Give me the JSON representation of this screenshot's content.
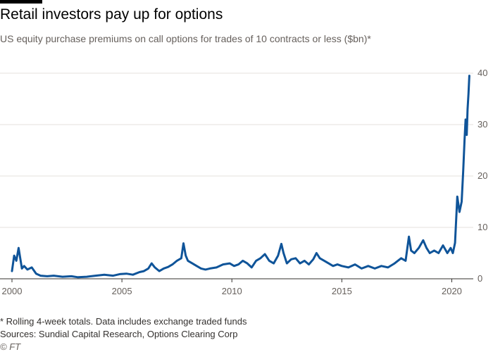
{
  "header": {
    "title": "Retail investors pay up for options",
    "subtitle": "US equity purchase premiums on call options for trades of 10 contracts or less ($bn)*"
  },
  "footer": {
    "footnote": "* Rolling 4-week totals. Data includes exchange traded funds",
    "source": "Sources: Sundial Capital Research, Options Clearing Corp",
    "credit": "© FT"
  },
  "colors": {
    "line": "#0f5499",
    "grid": "#e6e1dc",
    "axis": "#33302e",
    "text": "#66605c"
  },
  "chart_data": {
    "type": "line",
    "title": "Retail investors pay up for options",
    "xlabel": "",
    "ylabel": "",
    "xlim": [
      2000,
      2020.85
    ],
    "ylim": [
      0,
      40
    ],
    "x_ticks": [
      2000,
      2005,
      2010,
      2015,
      2020
    ],
    "y_ticks": [
      0,
      10,
      20,
      30,
      40
    ],
    "grid": "horizontal",
    "y_axis_side": "right",
    "series": [
      {
        "x": [
          2000.0,
          2000.1,
          2000.2,
          2000.3,
          2000.45,
          2000.55,
          2000.7,
          2000.9,
          2001.1,
          2001.3,
          2001.6,
          2001.9,
          2002.3,
          2002.7,
          2003.0,
          2003.4,
          2003.8,
          2004.2,
          2004.6,
          2004.9,
          2005.2,
          2005.5,
          2005.8,
          2006.0,
          2006.2,
          2006.35,
          2006.5,
          2006.7,
          2006.9,
          2007.1,
          2007.3,
          2007.5,
          2007.7,
          2007.8,
          2007.9,
          2008.0,
          2008.2,
          2008.4,
          2008.6,
          2008.8,
          2009.0,
          2009.3,
          2009.6,
          2009.9,
          2010.1,
          2010.3,
          2010.5,
          2010.7,
          2010.9,
          2011.1,
          2011.3,
          2011.5,
          2011.7,
          2011.9,
          2012.1,
          2012.25,
          2012.35,
          2012.5,
          2012.7,
          2012.9,
          2013.1,
          2013.3,
          2013.5,
          2013.7,
          2013.85,
          2014.0,
          2014.2,
          2014.4,
          2014.6,
          2014.8,
          2015.0,
          2015.3,
          2015.6,
          2015.9,
          2016.2,
          2016.5,
          2016.8,
          2017.1,
          2017.4,
          2017.7,
          2017.9,
          2018.05,
          2018.15,
          2018.3,
          2018.5,
          2018.7,
          2018.85,
          2019.0,
          2019.2,
          2019.4,
          2019.6,
          2019.8,
          2019.95,
          2020.05,
          2020.15,
          2020.25,
          2020.35,
          2020.45,
          2020.52,
          2020.58,
          2020.63,
          2020.68,
          2020.72,
          2020.76,
          2020.8
        ],
        "y": [
          1.5,
          4.5,
          3.5,
          6.0,
          2.0,
          2.5,
          1.8,
          2.2,
          1.0,
          0.6,
          0.5,
          0.6,
          0.4,
          0.5,
          0.3,
          0.4,
          0.6,
          0.8,
          0.6,
          0.9,
          1.0,
          0.8,
          1.3,
          1.5,
          2.0,
          3.0,
          2.2,
          1.5,
          2.0,
          2.3,
          2.8,
          3.5,
          4.0,
          6.9,
          4.5,
          3.5,
          3.0,
          2.5,
          2.0,
          1.8,
          2.0,
          2.2,
          2.8,
          3.0,
          2.5,
          2.8,
          3.5,
          3.0,
          2.2,
          3.5,
          4.0,
          4.8,
          3.5,
          3.0,
          4.5,
          6.8,
          5.0,
          3.0,
          3.8,
          4.0,
          3.0,
          3.5,
          2.8,
          3.8,
          5.0,
          4.0,
          3.5,
          3.0,
          2.5,
          2.8,
          2.5,
          2.2,
          2.8,
          2.0,
          2.5,
          2.0,
          2.5,
          2.2,
          3.0,
          4.0,
          3.5,
          8.2,
          5.5,
          5.0,
          6.0,
          7.5,
          6.0,
          5.0,
          5.5,
          5.0,
          6.5,
          5.0,
          6.0,
          5.0,
          7.0,
          16.0,
          13.0,
          15.0,
          21.0,
          27.0,
          31.0,
          28.0,
          33.0,
          36.0,
          39.5
        ]
      }
    ]
  }
}
